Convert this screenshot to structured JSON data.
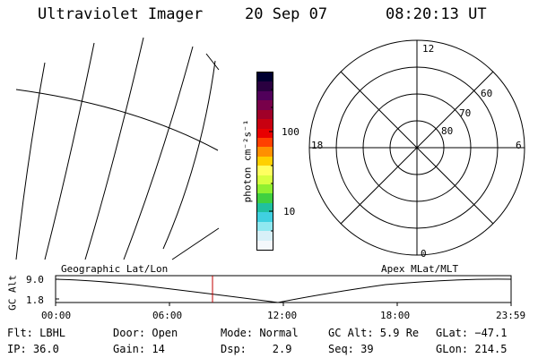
{
  "header": {
    "instrument": "Ultraviolet Imager",
    "date": "20 Sep 07",
    "time": "08:20:13 UT"
  },
  "colorbar": {
    "label": "photon cm⁻²s⁻¹",
    "ticks": [
      {
        "label": "100",
        "value": 100
      },
      {
        "label": "10",
        "value": 10
      }
    ],
    "colors": [
      "#000030",
      "#2a0040",
      "#50005a",
      "#78004a",
      "#a00028",
      "#c80010",
      "#e80000",
      "#ff4000",
      "#ff9000",
      "#ffd000",
      "#ffff60",
      "#d8ff40",
      "#90f030",
      "#40d040",
      "#20c0a0",
      "#40d0e0",
      "#90e8f0",
      "#d8f0f8",
      "#f4f8fc"
    ]
  },
  "polar_plot": {
    "clock_labels": {
      "top": "12",
      "left": "18",
      "right": "6",
      "bottom": "0"
    },
    "ring_labels": [
      "60",
      "70",
      "80"
    ]
  },
  "timeline": {
    "y_axis_label": "GC Alt",
    "y_ticks": [
      "9.0",
      "1.8"
    ],
    "left_title": "Geographic Lat/Lon",
    "right_title": "Apex MLat/MLT",
    "x_ticks": [
      "00:00",
      "06:00",
      "12:00",
      "18:00",
      "23:59"
    ],
    "current_marker_time": "08:20"
  },
  "info": {
    "filter": "Flt: LBHL",
    "ip": "IP: 36.0",
    "door": "Door: Open",
    "gain": "Gain: 14",
    "mode": "Mode: Normal",
    "dsp": "Dsp:    2.9",
    "gc_alt": "GC Alt: 5.9 Re",
    "seq": "Seq: 39",
    "glat": "GLat: −47.1",
    "glon": "GLon: 214.5"
  },
  "colors": {
    "marker": "#c00000",
    "lines": "#000000"
  }
}
